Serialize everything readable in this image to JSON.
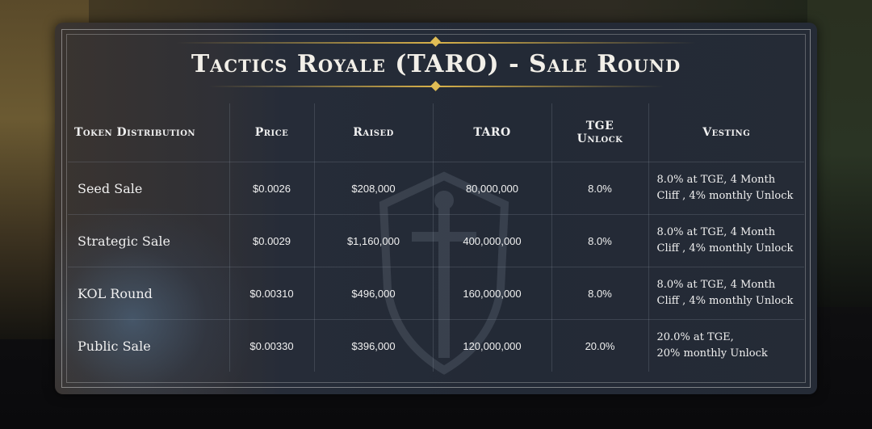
{
  "title": "Tactics Royale (TARO) - Sale Round",
  "columns": [
    "Token Distribution",
    "Price",
    "Raised",
    "TARO",
    "TGE Unlock",
    "Vesting"
  ],
  "rows": [
    {
      "name": "Seed Sale",
      "price": "$0.0026",
      "raised": "$208,000",
      "taro": "80,000,000",
      "tge": "8.0%",
      "vesting_line1": "8.0% at TGE,  4 Month",
      "vesting_line2": "Cliff , 4% monthly Unlock"
    },
    {
      "name": "Strategic Sale",
      "price": "$0.0029",
      "raised": "$1,160,000",
      "taro": "400,000,000",
      "tge": "8.0%",
      "vesting_line1": "8.0% at TGE,  4 Month",
      "vesting_line2": "Cliff , 4% monthly Unlock"
    },
    {
      "name": "KOL Round",
      "price": "$0.00310",
      "raised": "$496,000",
      "taro": "160,000,000",
      "tge": "8.0%",
      "vesting_line1": "8.0% at TGE,  4 Month",
      "vesting_line2": "Cliff , 4% monthly Unlock"
    },
    {
      "name": "Public Sale",
      "price": "$0.00330",
      "raised": "$396,000",
      "taro": "120,000,000",
      "tge": "20.0%",
      "vesting_line1": "20.0% at TGE,",
      "vesting_line2": "20% monthly Unlock"
    }
  ],
  "colors": {
    "accent_gold": "#d9b24a",
    "panel": "#252b36",
    "text": "#f0f0f0"
  },
  "icons": {
    "emblem": "shield-sword-emblem-icon"
  }
}
